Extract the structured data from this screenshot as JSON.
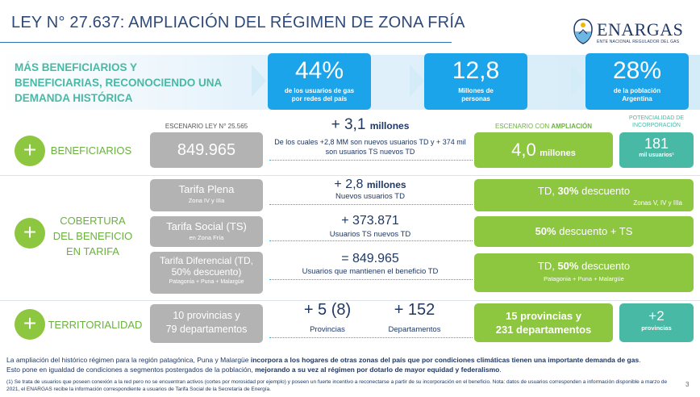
{
  "title": "LEY N° 27.637: AMPLIACIÓN DEL RÉGIMEN DE ZONA FRÍA",
  "logo": {
    "word": "ENARGAS",
    "subtitle": "ENTE NACIONAL REGULADOR DEL GAS"
  },
  "headline": "MÁS BENEFICIARIOS Y BENEFICIARIAS, RECONOCIENDO UNA DEMANDA HISTÓRICA",
  "stats": [
    {
      "value": "44%",
      "label": "de los usuarios de gas por redes del país"
    },
    {
      "value": "12,8",
      "label": "Millones de personas"
    },
    {
      "value": "28%",
      "label": "de la población Argentina"
    }
  ],
  "headers": {
    "scenario_left": "ESCENARIO LEY N° 25.565",
    "scenario_right_prefix": "ESCENARIO CON ",
    "scenario_right_bold": "AMPLIACIÓN",
    "potential": "POTENCIALIDAD DE INCORPORACIÓN"
  },
  "beneficiarios": {
    "category": "BENEFICIARIOS",
    "left_value": "849.965",
    "delta_num": "+ 3,1",
    "delta_unit": "millones",
    "delta_desc": "De los cuales +2,8 MM son nuevos usuarios TD y + 374 mil son usuarios TS nuevos TD",
    "right_num": "4,0",
    "right_unit": "millones",
    "potential_num": "181",
    "potential_unit": "mil usuarios¹"
  },
  "cobertura": {
    "category": "COBERTURA DEL BENEFICIO EN TARIFA",
    "rows": [
      {
        "left_title": "Tarifa Plena",
        "left_sub": "Zona IV y IIIa",
        "delta_num": "+ 2,8",
        "delta_unit": "millones",
        "delta_desc": "Nuevos usuarios TD",
        "right_main_a": "TD, ",
        "right_main_b": "30%",
        "right_main_c": " descuento",
        "right_sub": "Zonas V, IV y IIIa"
      },
      {
        "left_title": "Tarifa Social (TS)",
        "left_sub": "en Zona Fría",
        "delta_num": "+ 373.871",
        "delta_unit": "",
        "delta_desc": "Usuarios TS nuevos TD",
        "right_main_a": "",
        "right_main_b": "50%",
        "right_main_c": " descuento + TS",
        "right_sub": ""
      },
      {
        "left_title": "Tarifa Diferencial (TD, 50% descuento)",
        "left_sub": "Patagonia + Puna + Malargüe",
        "delta_num": "= 849.965",
        "delta_unit": "",
        "delta_desc": "Usuarios que mantienen el beneficio TD",
        "right_main_a": "TD, ",
        "right_main_b": "50%",
        "right_main_c": " descuento",
        "right_sub": "Patagonia + Puna + Malargüe"
      }
    ]
  },
  "territorialidad": {
    "category": "TERRITORIALIDAD",
    "left_line1": "10 provincias y",
    "left_line2": "79 departamentos",
    "prov_delta": "+ 5 (8)",
    "prov_label": "Provincias",
    "dep_delta": "+ 152",
    "dep_label": "Departamentos",
    "right_line1": "15 provincias y",
    "right_line2": "231 departamentos",
    "potential_num": "+2",
    "potential_unit": "provincias"
  },
  "footer": {
    "p1_a": "La ampliación del histórico régimen para la región patagónica, Puna y Malargüe ",
    "p1_b": "incorpora a los hogares de otras zonas del país que por condiciones climáticas tienen una importante demanda de gas",
    "p1_c": ". Esto pone en igualdad de condiciones a segmentos postergados de la población, ",
    "p1_d": "mejorando a su vez al régimen por dotarlo de mayor equidad y federalismo",
    "p1_e": ".",
    "note": "(1) Se trata de usuarios que poseen conexión a la red pero no se encuentran activos (cortes por morosidad por ejemplo) y poseen un fuerte incentivo a reconectarse a partir de su incorporación en el beneficio. Nota: datos de usuarios corresponden a información disponible a marzo de 2021, el ENARGAS recibe la información correspondiente a usuarios de Tarifa Social de la Secretaría de Energía.",
    "page": "3"
  },
  "colors": {
    "blue": "#1ba4ea",
    "green": "#8dc63f",
    "teal": "#48b9a4",
    "grey": "#b3b3b3",
    "navy": "#1f3864"
  },
  "icons": {
    "plus": "+",
    "logo": "argentine-shield-icon"
  }
}
